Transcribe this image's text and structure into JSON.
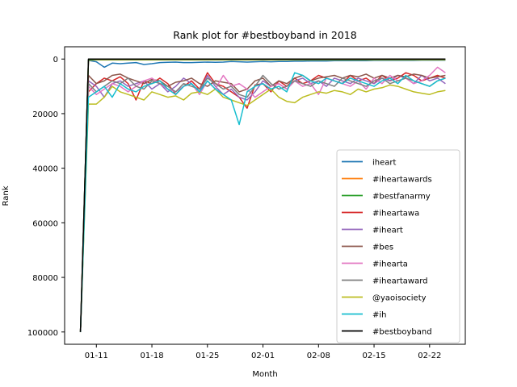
{
  "chart_data": {
    "type": "line",
    "title": "Rank plot for #bestboyband in 2018",
    "xlabel": "Month",
    "ylabel": "Rank",
    "x_ticks": [
      "01-11",
      "01-18",
      "01-25",
      "02-01",
      "02-08",
      "02-15",
      "02-22"
    ],
    "y_ticks": [
      "0",
      "20000",
      "40000",
      "60000",
      "80000",
      "100000"
    ],
    "y_inverted": true,
    "ylim": [
      104500,
      -4500
    ],
    "xlim": [
      -2.0,
      48.5
    ],
    "legend_position": "lower right",
    "x": [
      0,
      1,
      2,
      3,
      4,
      5,
      6,
      7,
      8,
      9,
      10,
      11,
      12,
      13,
      14,
      15,
      16,
      17,
      18,
      19,
      20,
      21,
      22,
      23,
      24,
      25,
      26,
      27,
      28,
      29,
      30,
      31,
      32,
      33,
      34,
      35,
      36,
      37,
      38,
      39,
      40,
      41,
      42,
      43,
      44,
      45,
      46
    ],
    "series": [
      {
        "name": "iheart",
        "color": "#1f77b4",
        "values": [
          100000,
          500,
          1000,
          3000,
          1500,
          1700,
          1500,
          1300,
          2000,
          1700,
          1300,
          1200,
          1100,
          1300,
          1300,
          1200,
          1100,
          1200,
          1100,
          900,
          1000,
          1100,
          1000,
          900,
          1000,
          900,
          900,
          800,
          800,
          700,
          700,
          700,
          600,
          600,
          600,
          600,
          600,
          500,
          500,
          500,
          500,
          500,
          500,
          400,
          400,
          400,
          400
        ]
      },
      {
        "name": "#iheartawards",
        "color": "#ff7f0e",
        "values": [
          100000,
          400,
          300,
          300,
          300,
          300,
          300,
          300,
          300,
          300,
          300,
          300,
          300,
          300,
          300,
          300,
          300,
          300,
          300,
          300,
          300,
          300,
          300,
          300,
          300,
          300,
          300,
          300,
          300,
          300,
          300,
          300,
          300,
          300,
          300,
          300,
          300,
          300,
          300,
          300,
          300,
          300,
          300,
          300,
          300,
          300,
          300
        ]
      },
      {
        "name": "#bestfanarmy",
        "color": "#2ca02c",
        "values": [
          100000,
          300,
          200,
          200,
          200,
          200,
          200,
          200,
          200,
          200,
          200,
          200,
          200,
          200,
          200,
          200,
          200,
          200,
          200,
          200,
          200,
          200,
          200,
          200,
          200,
          200,
          200,
          200,
          200,
          200,
          200,
          200,
          200,
          200,
          200,
          200,
          200,
          200,
          200,
          200,
          200,
          200,
          200,
          200,
          200,
          200,
          200
        ]
      },
      {
        "name": "#iheartawa",
        "color": "#d62728",
        "values": [
          100000,
          12000,
          9000,
          7000,
          8000,
          6500,
          9000,
          15000,
          8000,
          9000,
          7000,
          9000,
          13000,
          10000,
          8000,
          11000,
          5000,
          9000,
          10000,
          12000,
          14000,
          18000,
          9500,
          9000,
          12000,
          8000,
          10000,
          7000,
          9000,
          8000,
          6000,
          7000,
          8000,
          9000,
          6000,
          8000,
          7000,
          9000,
          6000,
          8000,
          7000,
          5000,
          6000,
          8000,
          7000,
          6000,
          7000
        ]
      },
      {
        "name": "#iheart",
        "color": "#9467bd",
        "values": [
          100000,
          8000,
          10000,
          14000,
          9000,
          8000,
          10000,
          9000,
          8000,
          11000,
          9000,
          12000,
          10000,
          7000,
          9000,
          12000,
          6000,
          10000,
          13000,
          11000,
          14000,
          15000,
          12000,
          8000,
          10000,
          9000,
          11000,
          8000,
          7000,
          9000,
          8000,
          10000,
          7000,
          8000,
          9000,
          7000,
          8000,
          9000,
          7000,
          8000,
          6000,
          7000,
          9000,
          6000,
          8000,
          7000,
          9000
        ]
      },
      {
        "name": "#bes",
        "color": "#8c564b",
        "values": [
          100000,
          6000,
          9000,
          8000,
          6000,
          5500,
          7000,
          8000,
          9000,
          7500,
          8000,
          10000,
          8500,
          8000,
          7000,
          9000,
          10000,
          8000,
          8500,
          9000,
          12000,
          11000,
          8000,
          7000,
          10000,
          8000,
          9000,
          7000,
          6000,
          8000,
          7000,
          6500,
          6000,
          7000,
          6000,
          6500,
          5500,
          7000,
          6000,
          7000,
          6000,
          6500,
          5500,
          6000,
          7000,
          6500,
          6000
        ]
      },
      {
        "name": "#ihearta",
        "color": "#e377c2",
        "values": [
          100000,
          10000,
          13000,
          11000,
          9000,
          10000,
          12000,
          10000,
          8000,
          7000,
          9000,
          11000,
          12000,
          10000,
          9000,
          13000,
          8000,
          11000,
          6000,
          10000,
          9000,
          11000,
          14000,
          12000,
          10000,
          9000,
          11000,
          8000,
          10000,
          9000,
          13000,
          7000,
          8000,
          9000,
          10000,
          8000,
          11000,
          7000,
          9000,
          6000,
          8000,
          7000,
          9000,
          8000,
          6000,
          3000,
          5000
        ]
      },
      {
        "name": "#iheartaward",
        "color": "#7f7f7f",
        "values": [
          100000,
          9000,
          12000,
          10000,
          8000,
          9000,
          7000,
          10000,
          11000,
          8000,
          9000,
          10000,
          12000,
          9000,
          10000,
          11000,
          7000,
          9000,
          11000,
          10000,
          13000,
          14000,
          10000,
          6000,
          9000,
          11000,
          10000,
          8000,
          9000,
          10000,
          8000,
          9000,
          10000,
          7000,
          8000,
          9000,
          10000,
          8000,
          7000,
          9000,
          8000,
          7000,
          8000,
          9000,
          10000,
          8000,
          7000
        ]
      },
      {
        "name": "@yaoisociety",
        "color": "#bcbd22",
        "values": [
          100000,
          16500,
          16500,
          14000,
          10000,
          12000,
          13000,
          14000,
          15000,
          12000,
          13000,
          14000,
          13500,
          15000,
          12500,
          12000,
          13000,
          11000,
          14000,
          15000,
          16000,
          17000,
          15000,
          13000,
          11000,
          14000,
          15500,
          16000,
          14000,
          13000,
          12000,
          12500,
          11500,
          12000,
          13000,
          11000,
          12000,
          11000,
          10500,
          9500,
          10000,
          11000,
          12000,
          12500,
          13000,
          12000,
          11500
        ]
      },
      {
        "name": "#ih",
        "color": "#17becf",
        "values": [
          100000,
          14000,
          12000,
          10000,
          14000,
          9000,
          11000,
          12000,
          10000,
          9000,
          8000,
          11000,
          13000,
          10000,
          9000,
          12000,
          8000,
          11000,
          13000,
          15000,
          24000,
          12000,
          10000,
          9000,
          11000,
          10000,
          12000,
          5000,
          6000,
          8000,
          9000,
          7000,
          8000,
          9000,
          7000,
          8000,
          9000,
          10000,
          8000,
          7000,
          9000,
          6000,
          8000,
          9000,
          10000,
          8000,
          7000
        ]
      },
      {
        "name": "#bestboyband",
        "color": "#000000",
        "values": [
          100000,
          0,
          0,
          0,
          0,
          0,
          0,
          0,
          0,
          0,
          0,
          0,
          0,
          0,
          0,
          0,
          0,
          0,
          0,
          0,
          0,
          0,
          0,
          0,
          0,
          0,
          0,
          0,
          0,
          0,
          0,
          0,
          0,
          0,
          0,
          0,
          0,
          0,
          0,
          0,
          0,
          0,
          0,
          0,
          0,
          0,
          0
        ]
      }
    ]
  }
}
